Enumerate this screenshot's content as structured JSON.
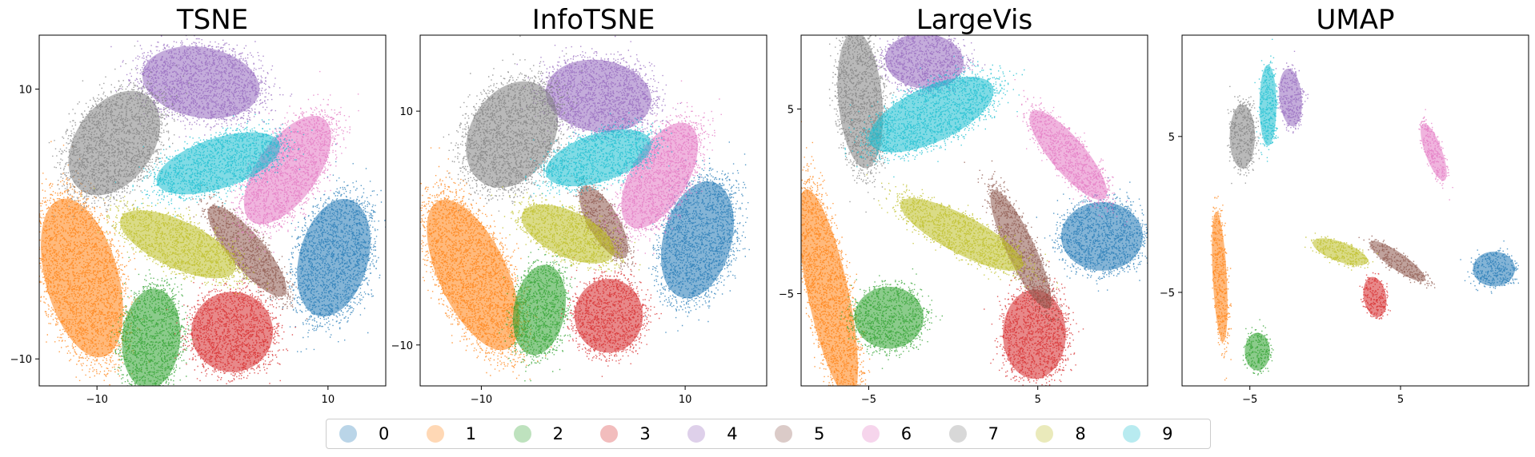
{
  "chart_data": [
    {
      "type": "scatter",
      "title": "TSNE",
      "xlim": [
        -15,
        15
      ],
      "ylim": [
        -12,
        14
      ],
      "xticks": [
        -10,
        10
      ],
      "yticks": [
        10,
        -10
      ],
      "xtick_labels": [
        "−10",
        "10"
      ],
      "ytick_labels": [
        "10",
        "−10"
      ],
      "clusters": [
        {
          "label": "0",
          "cx": 10.5,
          "cy": -2.5,
          "rx": 3.2,
          "ry": 4.8,
          "rot": -15
        },
        {
          "label": "1",
          "cx": -11.3,
          "cy": -4.0,
          "rx": 3.4,
          "ry": 6.5,
          "rot": 15
        },
        {
          "label": "2",
          "cx": -5.3,
          "cy": -8.5,
          "rx": 2.7,
          "ry": 4.0,
          "rot": -5
        },
        {
          "label": "3",
          "cx": 1.7,
          "cy": -8.0,
          "rx": 3.8,
          "ry": 3.2,
          "rot": 0
        },
        {
          "label": "4",
          "cx": -1.0,
          "cy": 10.5,
          "rx": 5.5,
          "ry": 2.8,
          "rot": -10
        },
        {
          "label": "5",
          "cx": 3.0,
          "cy": -2.0,
          "rx": 1.6,
          "ry": 4.6,
          "rot": 40
        },
        {
          "label": "6",
          "cx": 6.5,
          "cy": 4.0,
          "rx": 2.8,
          "ry": 5.0,
          "rot": -35
        },
        {
          "label": "7",
          "cx": -8.5,
          "cy": 6.0,
          "rx": 3.6,
          "ry": 4.6,
          "rot": -35
        },
        {
          "label": "8",
          "cx": -3.0,
          "cy": -1.5,
          "rx": 2.2,
          "ry": 5.0,
          "rot": 65
        },
        {
          "label": "9",
          "cx": 0.5,
          "cy": 4.5,
          "rx": 6.0,
          "ry": 2.0,
          "rot": 18
        }
      ]
    },
    {
      "type": "scatter",
      "title": "InfoTSNE",
      "xlim": [
        -16,
        18
      ],
      "ylim": [
        -13.5,
        16.5
      ],
      "xticks": [
        -10,
        10
      ],
      "yticks": [
        10,
        -10
      ],
      "xtick_labels": [
        "−10",
        "10"
      ],
      "ytick_labels": [
        "10",
        "−10"
      ],
      "clusters": [
        {
          "label": "0",
          "cx": 11.2,
          "cy": -1.0,
          "rx": 3.6,
          "ry": 5.5,
          "rot": -15
        },
        {
          "label": "1",
          "cx": -10.8,
          "cy": -4.0,
          "rx": 3.6,
          "ry": 7.5,
          "rot": 25
        },
        {
          "label": "2",
          "cx": -4.3,
          "cy": -7.0,
          "rx": 2.7,
          "ry": 4.2,
          "rot": -10
        },
        {
          "label": "3",
          "cx": 2.5,
          "cy": -7.5,
          "rx": 3.6,
          "ry": 3.4,
          "rot": 0
        },
        {
          "label": "4",
          "cx": 1.5,
          "cy": 11.3,
          "rx": 5.6,
          "ry": 3.3,
          "rot": -8
        },
        {
          "label": "5",
          "cx": 2.0,
          "cy": 0.5,
          "rx": 1.6,
          "ry": 3.8,
          "rot": 30
        },
        {
          "label": "6",
          "cx": 7.5,
          "cy": 4.5,
          "rx": 3.0,
          "ry": 5.4,
          "rot": -30
        },
        {
          "label": "7",
          "cx": -7.0,
          "cy": 8.0,
          "rx": 4.4,
          "ry": 5.2,
          "rot": -30
        },
        {
          "label": "8",
          "cx": -1.5,
          "cy": -0.5,
          "rx": 2.4,
          "ry": 4.6,
          "rot": 65
        },
        {
          "label": "9",
          "cx": 1.5,
          "cy": 6.0,
          "rx": 5.8,
          "ry": 2.2,
          "rot": 18
        }
      ]
    },
    {
      "type": "scatter",
      "title": "LargeVis",
      "xlim": [
        -9,
        11.5
      ],
      "ylim": [
        -10,
        9
      ],
      "xticks": [
        -5,
        5
      ],
      "yticks": [
        5,
        -5
      ],
      "xtick_labels": [
        "−5",
        "5"
      ],
      "ytick_labels": [
        "5",
        "−5"
      ],
      "clusters": [
        {
          "label": "0",
          "cx": 8.8,
          "cy": -1.9,
          "rx": 2.6,
          "ry": 2.0,
          "rot": 0
        },
        {
          "label": "1",
          "cx": -7.4,
          "cy": -5.0,
          "rx": 1.3,
          "ry": 6.2,
          "rot": 12
        },
        {
          "label": "2",
          "cx": -3.8,
          "cy": -6.3,
          "rx": 2.2,
          "ry": 1.8,
          "rot": 0
        },
        {
          "label": "3",
          "cx": 4.8,
          "cy": -7.2,
          "rx": 2.0,
          "ry": 2.6,
          "rot": 0
        },
        {
          "label": "4",
          "cx": -1.7,
          "cy": 7.6,
          "rx": 2.5,
          "ry": 1.6,
          "rot": -5
        },
        {
          "label": "5",
          "cx": 4.0,
          "cy": -2.6,
          "rx": 0.9,
          "ry": 3.8,
          "rot": 25
        },
        {
          "label": "6",
          "cx": 6.8,
          "cy": 2.5,
          "rx": 1.1,
          "ry": 3.3,
          "rot": 40
        },
        {
          "label": "7",
          "cx": -5.5,
          "cy": 5.5,
          "rx": 1.4,
          "ry": 4.0,
          "rot": 5
        },
        {
          "label": "8",
          "cx": 0.5,
          "cy": -1.8,
          "rx": 1.2,
          "ry": 4.0,
          "rot": 62
        },
        {
          "label": "9",
          "cx": -1.3,
          "cy": 4.7,
          "rx": 4.3,
          "ry": 1.6,
          "rot": 25
        }
      ]
    },
    {
      "type": "scatter",
      "title": "UMAP",
      "xlim": [
        -9.5,
        13.5
      ],
      "ylim": [
        -11,
        11.5
      ],
      "xticks": [
        -5,
        5
      ],
      "yticks": [
        5,
        -5
      ],
      "xtick_labels": [
        "−5",
        "5"
      ],
      "ytick_labels": [
        "5",
        "−5"
      ],
      "clusters": [
        {
          "label": "0",
          "cx": 11.2,
          "cy": -3.5,
          "rx": 1.5,
          "ry": 1.2,
          "rot": 0
        },
        {
          "label": "1",
          "cx": -7.0,
          "cy": -4.0,
          "rx": 0.5,
          "ry": 4.5,
          "rot": 3
        },
        {
          "label": "2",
          "cx": -4.5,
          "cy": -8.8,
          "rx": 0.9,
          "ry": 1.3,
          "rot": 0
        },
        {
          "label": "3",
          "cx": 3.3,
          "cy": -5.3,
          "rx": 0.8,
          "ry": 1.4,
          "rot": 10
        },
        {
          "label": "4",
          "cx": -2.3,
          "cy": 7.5,
          "rx": 0.8,
          "ry": 2.0,
          "rot": 5
        },
        {
          "label": "5",
          "cx": 4.8,
          "cy": -3.0,
          "rx": 0.6,
          "ry": 2.3,
          "rot": 55
        },
        {
          "label": "6",
          "cx": 7.2,
          "cy": 4.0,
          "rx": 0.6,
          "ry": 2.1,
          "rot": 20
        },
        {
          "label": "7",
          "cx": -5.5,
          "cy": 5.0,
          "rx": 0.9,
          "ry": 2.2,
          "rot": 0
        },
        {
          "label": "8",
          "cx": 1.0,
          "cy": -2.4,
          "rx": 0.7,
          "ry": 2.0,
          "rot": 70
        },
        {
          "label": "9",
          "cx": -3.8,
          "cy": 7.0,
          "rx": 0.6,
          "ry": 2.8,
          "rot": 0
        }
      ]
    }
  ],
  "legend": {
    "entries": [
      {
        "label": "0",
        "color": "#1f77b4"
      },
      {
        "label": "1",
        "color": "#ff7f0e"
      },
      {
        "label": "2",
        "color": "#2ca02c"
      },
      {
        "label": "3",
        "color": "#d62728"
      },
      {
        "label": "4",
        "color": "#9467bd"
      },
      {
        "label": "5",
        "color": "#8c564b"
      },
      {
        "label": "6",
        "color": "#e377c2"
      },
      {
        "label": "7",
        "color": "#7f7f7f"
      },
      {
        "label": "8",
        "color": "#bcbd22"
      },
      {
        "label": "9",
        "color": "#17becf"
      }
    ]
  }
}
